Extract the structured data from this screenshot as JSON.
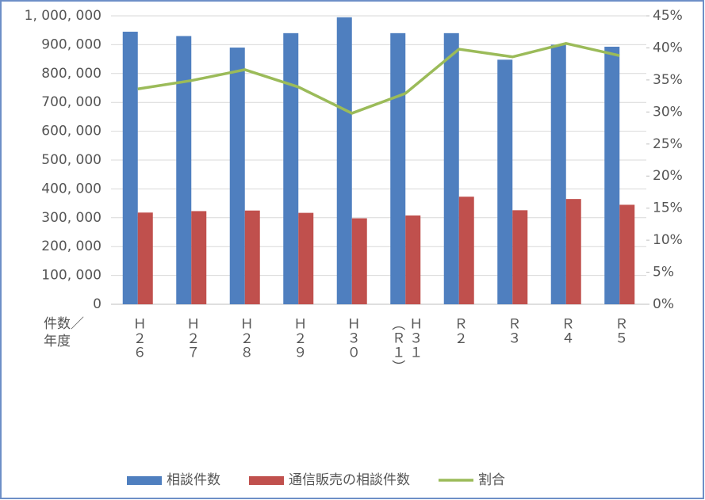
{
  "chart_data": {
    "type": "bar-line",
    "x_axis_label": "件数／\n年度",
    "categories": [
      "Ｈ２６",
      "Ｈ２７",
      "Ｈ２８",
      "Ｈ２９",
      "Ｈ３０",
      "Ｈ３１\n（Ｒ１）",
      "Ｒ２",
      "Ｒ３",
      "Ｒ４",
      "Ｒ５"
    ],
    "series": [
      {
        "name": "相談件数",
        "color": "#4f7fbf",
        "type": "bar",
        "values": [
          945000,
          930000,
          890000,
          940000,
          995000,
          940000,
          940000,
          848000,
          900000,
          893000
        ]
      },
      {
        "name": "通信販売の相談件数",
        "color": "#c0504d",
        "type": "bar",
        "values": [
          318000,
          323000,
          325000,
          317000,
          298000,
          308000,
          373000,
          326000,
          365000,
          345000
        ]
      },
      {
        "name": "割合",
        "color": "#9bbb59",
        "type": "line",
        "axis": "y2",
        "values": [
          33.6,
          34.9,
          36.6,
          33.9,
          29.8,
          32.9,
          39.8,
          38.6,
          40.7,
          38.8
        ]
      }
    ],
    "ylim": [
      0,
      1000000
    ],
    "yticks": [
      0,
      {
        "value": 100000,
        "label": "100, 000"
      },
      {
        "value": 200000,
        "label": "200, 000"
      },
      {
        "value": 300000,
        "label": "300, 000"
      },
      {
        "value": 400000,
        "label": "400, 000"
      },
      {
        "value": 500000,
        "label": "500, 000"
      },
      {
        "value": 600000,
        "label": "600, 000"
      },
      {
        "value": 700000,
        "label": "700, 000"
      },
      {
        "value": 800000,
        "label": "800, 000"
      },
      {
        "value": 900000,
        "label": "900, 000"
      },
      {
        "value": 1000000,
        "label": "1, 000, 000"
      }
    ],
    "y2lim": [
      0,
      45
    ],
    "y2ticks": [
      {
        "value": 0,
        "label": "0%"
      },
      {
        "value": 5,
        "label": "5%"
      },
      {
        "value": 10,
        "label": "10%"
      },
      {
        "value": 15,
        "label": "15%"
      },
      {
        "value": 20,
        "label": "20%"
      },
      {
        "value": 25,
        "label": "25%"
      },
      {
        "value": 30,
        "label": "30%"
      },
      {
        "value": 35,
        "label": "35%"
      },
      {
        "value": 40,
        "label": "40%"
      },
      {
        "value": 45,
        "label": "45%"
      }
    ],
    "grid": true,
    "legend": "bottom"
  }
}
